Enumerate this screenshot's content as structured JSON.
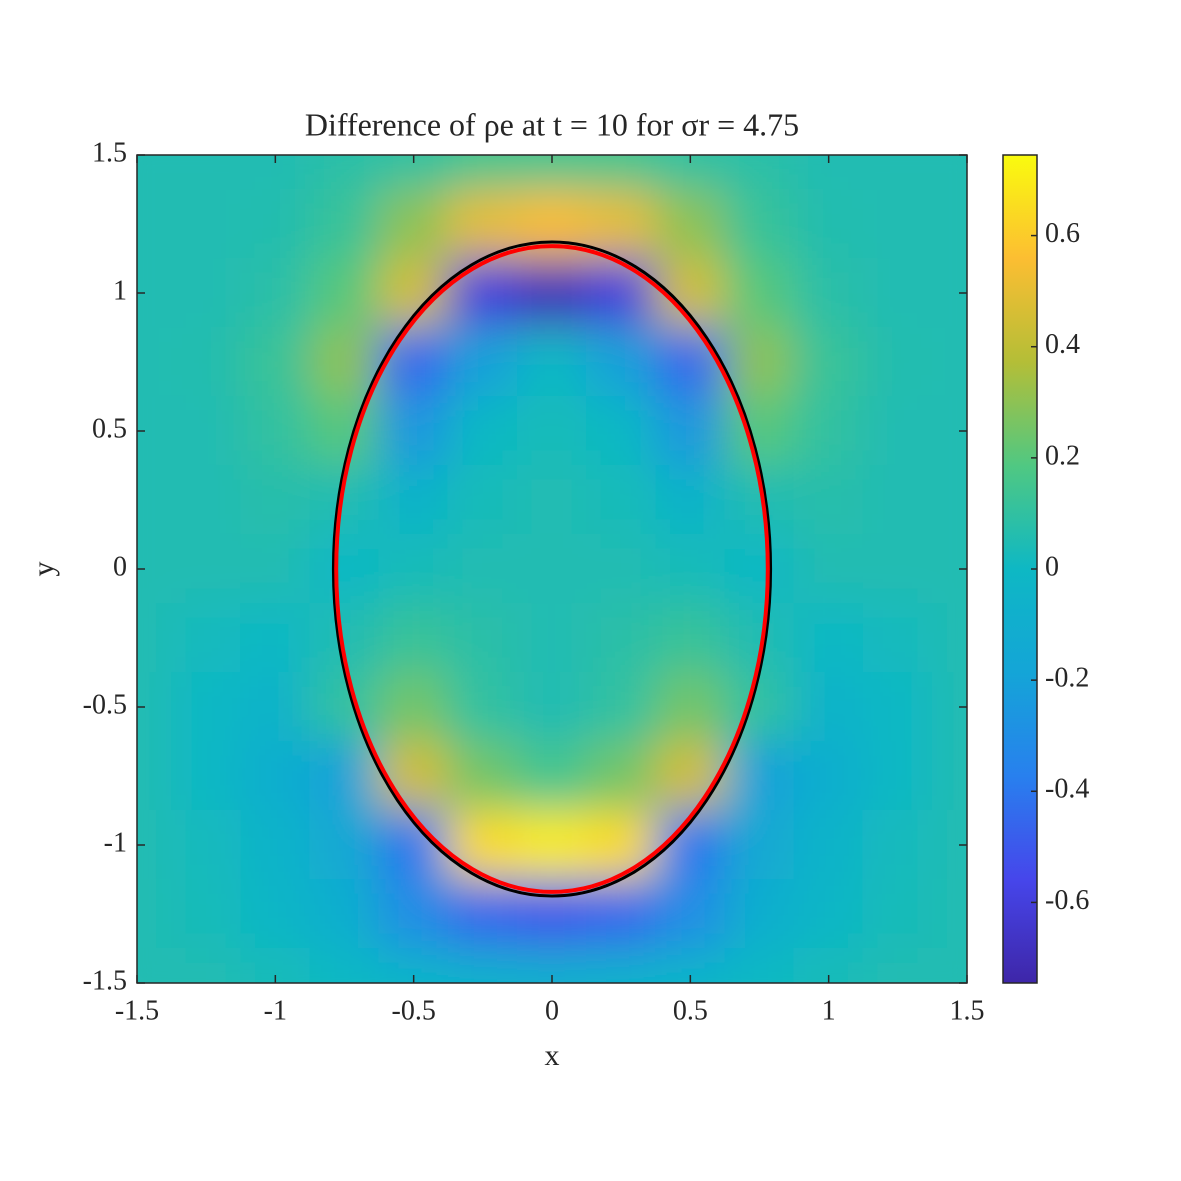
{
  "chart_data": {
    "type": "heatmap",
    "title": "Difference of ρe at t = 10 for σr = 4.75",
    "xlabel": "x",
    "ylabel": "y",
    "xlim": [
      -1.5,
      1.5
    ],
    "ylim": [
      -1.5,
      1.5
    ],
    "xticks": [
      -1.5,
      -1,
      -0.5,
      0,
      0.5,
      1,
      1.5
    ],
    "yticks": [
      -1.5,
      -1,
      -0.5,
      0,
      0.5,
      1,
      1.5
    ],
    "colormap": "parula",
    "clim": [
      -0.745,
      0.745
    ],
    "cticks": [
      -0.6,
      -0.4,
      -0.2,
      0,
      0.2,
      0.4,
      0.6
    ],
    "x": [
      -1.5,
      -1.25,
      -1,
      -0.75,
      -0.5,
      -0.25,
      0,
      0.25,
      0.5,
      0.75,
      1,
      1.25,
      1.5
    ],
    "y": [
      1.5,
      1.25,
      1,
      0.75,
      0.5,
      0.25,
      0,
      -0.25,
      -0.5,
      -0.75,
      -1,
      -1.25,
      -1.5
    ],
    "z": [
      [
        0.05,
        0.05,
        0.05,
        0.08,
        0.1,
        0.15,
        0.15,
        0.15,
        0.1,
        0.08,
        0.05,
        0.05,
        0.05
      ],
      [
        0.05,
        0.05,
        0.06,
        0.12,
        0.3,
        0.5,
        0.55,
        0.5,
        0.3,
        0.12,
        0.06,
        0.05,
        0.05
      ],
      [
        0.05,
        0.05,
        0.08,
        0.2,
        0.45,
        -0.6,
        -0.7,
        -0.6,
        0.45,
        0.2,
        0.08,
        0.05,
        0.05
      ],
      [
        0.05,
        0.06,
        0.12,
        0.3,
        -0.45,
        -0.2,
        0.0,
        -0.2,
        -0.45,
        0.3,
        0.12,
        0.06,
        0.05
      ],
      [
        0.05,
        0.05,
        0.1,
        0.2,
        -0.25,
        0.0,
        0.03,
        0.0,
        -0.25,
        0.2,
        0.1,
        0.05,
        0.05
      ],
      [
        0.05,
        0.05,
        0.07,
        0.05,
        -0.05,
        0.03,
        0.05,
        0.03,
        -0.05,
        0.05,
        0.07,
        0.05,
        0.05
      ],
      [
        0.05,
        0.05,
        0.05,
        0.0,
        0.03,
        0.05,
        0.05,
        0.05,
        0.03,
        0.0,
        0.05,
        0.05,
        0.05
      ],
      [
        0.05,
        0.02,
        0.0,
        0.05,
        0.12,
        0.08,
        0.05,
        0.08,
        0.12,
        0.05,
        0.0,
        0.02,
        0.05
      ],
      [
        0.05,
        0.0,
        -0.05,
        0.1,
        0.25,
        0.1,
        0.05,
        0.1,
        0.25,
        0.1,
        -0.05,
        0.0,
        0.05
      ],
      [
        0.05,
        0.0,
        -0.1,
        -0.2,
        0.45,
        0.25,
        0.15,
        0.25,
        0.45,
        -0.2,
        -0.1,
        0.0,
        0.05
      ],
      [
        0.05,
        0.02,
        -0.05,
        -0.15,
        -0.4,
        0.65,
        0.7,
        0.65,
        -0.4,
        -0.15,
        -0.05,
        0.02,
        0.05
      ],
      [
        0.05,
        0.03,
        -0.02,
        -0.1,
        -0.3,
        -0.45,
        -0.5,
        -0.45,
        -0.3,
        -0.1,
        -0.02,
        0.03,
        0.05
      ],
      [
        0.05,
        0.05,
        0.03,
        0.0,
        -0.05,
        -0.08,
        -0.1,
        -0.08,
        -0.05,
        0.0,
        0.03,
        0.05,
        0.05
      ]
    ],
    "ellipses": [
      {
        "color": "#000000",
        "cx": 0,
        "cy": 0,
        "rx": 0.79,
        "ry": 1.185
      },
      {
        "color": "#ff0000",
        "cx": 0,
        "cy": 0,
        "rx": 0.78,
        "ry": 1.17
      }
    ]
  }
}
